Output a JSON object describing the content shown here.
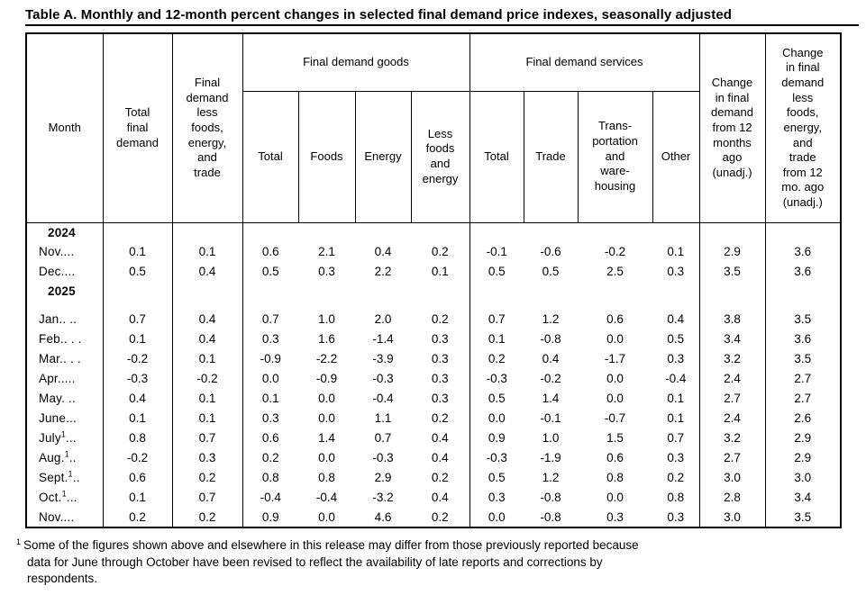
{
  "title": "Table A. Monthly and 12-month percent changes in selected final demand price indexes, seasonally adjusted",
  "colors": {
    "text": "#000000",
    "border": "#000000",
    "background": "#ffffff"
  },
  "table": {
    "headers": {
      "month": "Month",
      "total_final_demand": "Total\nfinal\ndemand",
      "less_fet": "Final\ndemand\nless\nfoods,\nenergy,\nand\ntrade",
      "goods_group": "Final demand goods",
      "goods_cols": [
        "Total",
        "Foods",
        "Energy",
        "Less\nfoods\nand\nenergy"
      ],
      "services_group": "Final demand services",
      "services_cols": [
        "Total",
        "Trade",
        "Trans-\nportation\nand\nware-\nhousing",
        "Other"
      ],
      "change_12mo": "Change\nin final\ndemand\nfrom 12\nmonths\nago\n(unadj.)",
      "change_less_12mo": "Change\nin final\ndemand\nless\nfoods,\nenergy,\nand\ntrade\nfrom 12\nmo. ago\n(unadj.)"
    },
    "rows": [
      {
        "type": "year",
        "label": "2024"
      },
      {
        "type": "data",
        "month": "Nov",
        "sup": "",
        "dots": "....",
        "values": [
          "0.1",
          "0.1",
          "0.6",
          "2.1",
          "0.4",
          "0.2",
          "-0.1",
          "-0.6",
          "-0.2",
          "0.1",
          "2.9",
          "3.6"
        ]
      },
      {
        "type": "data",
        "month": "Dec",
        "sup": "",
        "dots": "....",
        "values": [
          "0.5",
          "0.4",
          "0.5",
          "0.3",
          "2.2",
          "0.1",
          "0.5",
          "0.5",
          "2.5",
          "0.3",
          "3.5",
          "3.6"
        ]
      },
      {
        "type": "year",
        "label": "2025"
      },
      {
        "type": "data",
        "gap": true,
        "month": "Jan",
        "sup": "",
        "dots": ".. ..",
        "values": [
          "0.7",
          "0.4",
          "0.7",
          "1.0",
          "2.0",
          "0.2",
          "0.7",
          "1.2",
          "0.6",
          "0.4",
          "3.8",
          "3.5"
        ]
      },
      {
        "type": "data",
        "month": "Feb",
        "sup": "",
        "dots": ".. . .",
        "values": [
          "0.1",
          "0.4",
          "0.3",
          "1.6",
          "-1.4",
          "0.3",
          "0.1",
          "-0.8",
          "0.0",
          "0.5",
          "3.4",
          "3.6"
        ]
      },
      {
        "type": "data",
        "month": "Mar",
        "sup": "",
        "dots": ".. . .",
        "values": [
          "-0.2",
          "0.1",
          "-0.9",
          "-2.2",
          "-3.9",
          "0.3",
          "0.2",
          "0.4",
          "-1.7",
          "0.3",
          "3.2",
          "3.5"
        ]
      },
      {
        "type": "data",
        "month": "Apr",
        "sup": "",
        "dots": ".....",
        "values": [
          "-0.3",
          "-0.2",
          "0.0",
          "-0.9",
          "-0.3",
          "0.3",
          "-0.3",
          "-0.2",
          "0.0",
          "-0.4",
          "2.4",
          "2.7"
        ]
      },
      {
        "type": "data",
        "month": "May",
        "sup": "",
        "dots": ". ..",
        "values": [
          "0.4",
          "0.1",
          "0.1",
          "0.0",
          "-0.4",
          "0.3",
          "0.5",
          "1.4",
          "0.0",
          "0.1",
          "2.7",
          "2.7"
        ]
      },
      {
        "type": "data",
        "month": "June",
        "sup": "",
        "dots": "...",
        "values": [
          "0.1",
          "0.1",
          "0.3",
          "0.0",
          "1.1",
          "0.2",
          "0.0",
          "-0.1",
          "-0.7",
          "0.1",
          "2.4",
          "2.6"
        ]
      },
      {
        "type": "data",
        "month": "July",
        "sup": "1",
        "dots": "...",
        "values": [
          "0.8",
          "0.7",
          "0.6",
          "1.4",
          "0.7",
          "0.4",
          "0.9",
          "1.0",
          "1.5",
          "0.7",
          "3.2",
          "2.9"
        ]
      },
      {
        "type": "data",
        "month": "Aug.",
        "sup": "1",
        "dots": "..",
        "values": [
          "-0.2",
          "0.3",
          "0.2",
          "0.0",
          "-0.3",
          "0.4",
          "-0.3",
          "-1.9",
          "0.6",
          "0.3",
          "2.7",
          "2.9"
        ]
      },
      {
        "type": "data",
        "month": "Sept.",
        "sup": "1",
        "dots": "..",
        "values": [
          "0.6",
          "0.2",
          "0.8",
          "0.8",
          "2.9",
          "0.2",
          "0.5",
          "1.2",
          "0.8",
          "0.2",
          "3.0",
          "3.0"
        ]
      },
      {
        "type": "data",
        "month": "Oct.",
        "sup": "1",
        "dots": "...",
        "values": [
          "0.1",
          "0.7",
          "-0.4",
          "-0.4",
          "-3.2",
          "0.4",
          "0.3",
          "-0.8",
          "0.0",
          "0.8",
          "2.8",
          "3.4"
        ]
      },
      {
        "type": "data",
        "month": "Nov",
        "sup": "",
        "dots": "....",
        "values": [
          "0.2",
          "0.2",
          "0.9",
          "0.0",
          "4.6",
          "0.2",
          "0.0",
          "-0.8",
          "0.3",
          "0.3",
          "3.0",
          "3.5"
        ]
      }
    ]
  },
  "footnote": {
    "marker": "1",
    "text": "Some of the figures shown above and elsewhere in this release may differ from those previously reported because\ndata for June through October have been revised to reflect the availability of late reports and corrections by\nrespondents."
  }
}
